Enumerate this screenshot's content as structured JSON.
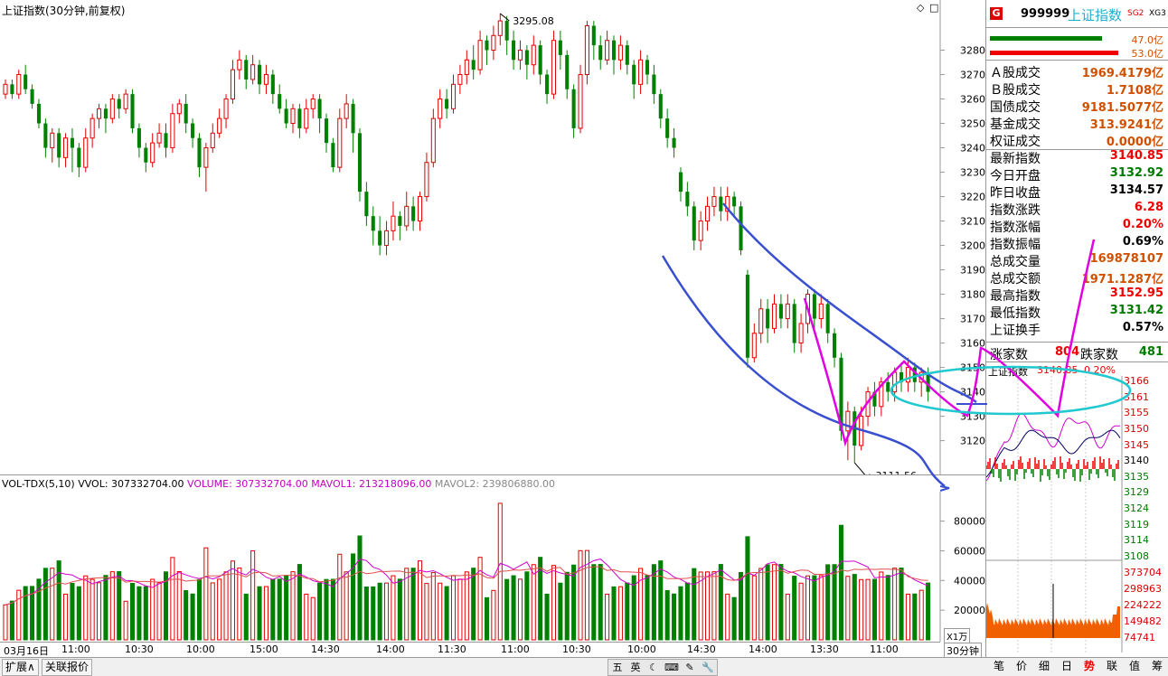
{
  "header": {
    "title": "上证指数(30分钟,前复权)",
    "icons": [
      "diamond-icon",
      "square-icon"
    ]
  },
  "chart_data": {
    "type": "candlestick",
    "title": "上证指数(30分钟,前复权)",
    "price_axis": {
      "ticks": [
        "3280",
        "3270",
        "3260",
        "3250",
        "3240",
        "3230",
        "3220",
        "3210",
        "3200",
        "3190",
        "3180",
        "3170",
        "3160",
        "3150",
        "3140",
        "3130",
        "3120"
      ]
    },
    "high_annotation": "3295.08",
    "low_annotation": "3111.56",
    "time_axis": [
      "03月16日",
      "11:00",
      "10:30",
      "10:00",
      "15:00",
      "14:30",
      "14:00",
      "11:30",
      "11:00",
      "10:30",
      "10:00",
      "14:30",
      "14:00",
      "13:30",
      "11:00"
    ],
    "candles": [
      {
        "o": 3262,
        "c": 3266,
        "h": 3268,
        "l": 3260
      },
      {
        "o": 3266,
        "c": 3262,
        "h": 3268,
        "l": 3260
      },
      {
        "o": 3262,
        "c": 3270,
        "h": 3272,
        "l": 3260
      },
      {
        "o": 3270,
        "c": 3264,
        "h": 3274,
        "l": 3262
      },
      {
        "o": 3264,
        "c": 3258,
        "h": 3266,
        "l": 3256
      },
      {
        "o": 3258,
        "c": 3250,
        "h": 3260,
        "l": 3248
      },
      {
        "o": 3250,
        "c": 3240,
        "h": 3252,
        "l": 3236
      },
      {
        "o": 3240,
        "c": 3246,
        "h": 3248,
        "l": 3234
      },
      {
        "o": 3246,
        "c": 3236,
        "h": 3248,
        "l": 3232
      },
      {
        "o": 3236,
        "c": 3244,
        "h": 3246,
        "l": 3232
      },
      {
        "o": 3244,
        "c": 3240,
        "h": 3248,
        "l": 3230
      },
      {
        "o": 3240,
        "c": 3232,
        "h": 3242,
        "l": 3228
      },
      {
        "o": 3232,
        "c": 3244,
        "h": 3248,
        "l": 3230
      },
      {
        "o": 3244,
        "c": 3252,
        "h": 3254,
        "l": 3240
      },
      {
        "o": 3252,
        "c": 3256,
        "h": 3258,
        "l": 3248
      },
      {
        "o": 3256,
        "c": 3252,
        "h": 3258,
        "l": 3246
      },
      {
        "o": 3252,
        "c": 3260,
        "h": 3262,
        "l": 3250
      },
      {
        "o": 3260,
        "c": 3256,
        "h": 3262,
        "l": 3252
      },
      {
        "o": 3256,
        "c": 3262,
        "h": 3264,
        "l": 3254
      },
      {
        "o": 3262,
        "c": 3248,
        "h": 3264,
        "l": 3246
      },
      {
        "o": 3248,
        "c": 3240,
        "h": 3250,
        "l": 3236
      },
      {
        "o": 3240,
        "c": 3234,
        "h": 3242,
        "l": 3230
      },
      {
        "o": 3234,
        "c": 3242,
        "h": 3246,
        "l": 3232
      },
      {
        "o": 3242,
        "c": 3246,
        "h": 3250,
        "l": 3240
      },
      {
        "o": 3246,
        "c": 3240,
        "h": 3250,
        "l": 3236
      },
      {
        "o": 3240,
        "c": 3254,
        "h": 3258,
        "l": 3238
      },
      {
        "o": 3254,
        "c": 3258,
        "h": 3260,
        "l": 3250
      },
      {
        "o": 3258,
        "c": 3250,
        "h": 3262,
        "l": 3246
      },
      {
        "o": 3250,
        "c": 3244,
        "h": 3252,
        "l": 3240
      },
      {
        "o": 3244,
        "c": 3232,
        "h": 3246,
        "l": 3228
      },
      {
        "o": 3232,
        "c": 3240,
        "h": 3242,
        "l": 3222
      },
      {
        "o": 3240,
        "c": 3246,
        "h": 3250,
        "l": 3238
      },
      {
        "o": 3246,
        "c": 3252,
        "h": 3256,
        "l": 3244
      },
      {
        "o": 3252,
        "c": 3260,
        "h": 3262,
        "l": 3248
      },
      {
        "o": 3260,
        "c": 3272,
        "h": 3276,
        "l": 3258
      },
      {
        "o": 3272,
        "c": 3276,
        "h": 3280,
        "l": 3268
      },
      {
        "o": 3276,
        "c": 3268,
        "h": 3278,
        "l": 3264
      },
      {
        "o": 3268,
        "c": 3274,
        "h": 3278,
        "l": 3266
      },
      {
        "o": 3274,
        "c": 3266,
        "h": 3276,
        "l": 3262
      },
      {
        "o": 3266,
        "c": 3270,
        "h": 3274,
        "l": 3262
      },
      {
        "o": 3270,
        "c": 3262,
        "h": 3272,
        "l": 3258
      },
      {
        "o": 3262,
        "c": 3256,
        "h": 3266,
        "l": 3254
      },
      {
        "o": 3256,
        "c": 3250,
        "h": 3260,
        "l": 3248
      },
      {
        "o": 3250,
        "c": 3256,
        "h": 3258,
        "l": 3246
      },
      {
        "o": 3256,
        "c": 3248,
        "h": 3258,
        "l": 3244
      },
      {
        "o": 3248,
        "c": 3256,
        "h": 3260,
        "l": 3246
      },
      {
        "o": 3256,
        "c": 3260,
        "h": 3262,
        "l": 3252
      },
      {
        "o": 3260,
        "c": 3252,
        "h": 3262,
        "l": 3246
      },
      {
        "o": 3252,
        "c": 3242,
        "h": 3254,
        "l": 3238
      },
      {
        "o": 3242,
        "c": 3232,
        "h": 3244,
        "l": 3230
      },
      {
        "o": 3232,
        "c": 3252,
        "h": 3256,
        "l": 3230
      },
      {
        "o": 3252,
        "c": 3258,
        "h": 3262,
        "l": 3248
      },
      {
        "o": 3258,
        "c": 3246,
        "h": 3260,
        "l": 3238
      },
      {
        "o": 3246,
        "c": 3222,
        "h": 3248,
        "l": 3218
      },
      {
        "o": 3222,
        "c": 3212,
        "h": 3226,
        "l": 3208
      },
      {
        "o": 3212,
        "c": 3206,
        "h": 3216,
        "l": 3200
      },
      {
        "o": 3206,
        "c": 3200,
        "h": 3212,
        "l": 3196
      },
      {
        "o": 3200,
        "c": 3206,
        "h": 3210,
        "l": 3196
      },
      {
        "o": 3206,
        "c": 3212,
        "h": 3218,
        "l": 3202
      },
      {
        "o": 3212,
        "c": 3208,
        "h": 3214,
        "l": 3202
      },
      {
        "o": 3208,
        "c": 3216,
        "h": 3222,
        "l": 3206
      },
      {
        "o": 3216,
        "c": 3210,
        "h": 3220,
        "l": 3206
      },
      {
        "o": 3210,
        "c": 3220,
        "h": 3222,
        "l": 3206
      },
      {
        "o": 3220,
        "c": 3234,
        "h": 3238,
        "l": 3218
      },
      {
        "o": 3234,
        "c": 3252,
        "h": 3256,
        "l": 3232
      },
      {
        "o": 3252,
        "c": 3260,
        "h": 3264,
        "l": 3248
      },
      {
        "o": 3260,
        "c": 3256,
        "h": 3264,
        "l": 3252
      },
      {
        "o": 3256,
        "c": 3266,
        "h": 3270,
        "l": 3254
      },
      {
        "o": 3266,
        "c": 3270,
        "h": 3274,
        "l": 3262
      },
      {
        "o": 3270,
        "c": 3276,
        "h": 3280,
        "l": 3266
      },
      {
        "o": 3276,
        "c": 3272,
        "h": 3282,
        "l": 3268
      },
      {
        "o": 3272,
        "c": 3284,
        "h": 3288,
        "l": 3270
      },
      {
        "o": 3284,
        "c": 3280,
        "h": 3286,
        "l": 3274
      },
      {
        "o": 3280,
        "c": 3286,
        "h": 3290,
        "l": 3276
      },
      {
        "o": 3286,
        "c": 3292,
        "h": 3295,
        "l": 3282
      },
      {
        "o": 3292,
        "c": 3284,
        "h": 3294,
        "l": 3278
      },
      {
        "o": 3284,
        "c": 3276,
        "h": 3288,
        "l": 3272
      },
      {
        "o": 3276,
        "c": 3280,
        "h": 3284,
        "l": 3272
      },
      {
        "o": 3280,
        "c": 3274,
        "h": 3282,
        "l": 3268
      },
      {
        "o": 3274,
        "c": 3282,
        "h": 3286,
        "l": 3270
      },
      {
        "o": 3282,
        "c": 3270,
        "h": 3284,
        "l": 3266
      },
      {
        "o": 3270,
        "c": 3262,
        "h": 3272,
        "l": 3258
      },
      {
        "o": 3262,
        "c": 3284,
        "h": 3288,
        "l": 3260
      },
      {
        "o": 3284,
        "c": 3278,
        "h": 3288,
        "l": 3272
      },
      {
        "o": 3278,
        "c": 3264,
        "h": 3280,
        "l": 3260
      },
      {
        "o": 3264,
        "c": 3248,
        "h": 3266,
        "l": 3244
      },
      {
        "o": 3248,
        "c": 3270,
        "h": 3274,
        "l": 3246
      },
      {
        "o": 3270,
        "c": 3290,
        "h": 3292,
        "l": 3266
      },
      {
        "o": 3290,
        "c": 3282,
        "h": 3292,
        "l": 3276
      },
      {
        "o": 3282,
        "c": 3276,
        "h": 3286,
        "l": 3272
      },
      {
        "o": 3276,
        "c": 3284,
        "h": 3288,
        "l": 3274
      },
      {
        "o": 3284,
        "c": 3276,
        "h": 3286,
        "l": 3270
      },
      {
        "o": 3276,
        "c": 3282,
        "h": 3286,
        "l": 3272
      },
      {
        "o": 3282,
        "c": 3274,
        "h": 3284,
        "l": 3270
      },
      {
        "o": 3274,
        "c": 3266,
        "h": 3276,
        "l": 3260
      },
      {
        "o": 3266,
        "c": 3276,
        "h": 3280,
        "l": 3262
      },
      {
        "o": 3276,
        "c": 3270,
        "h": 3278,
        "l": 3266
      },
      {
        "o": 3270,
        "c": 3262,
        "h": 3274,
        "l": 3258
      },
      {
        "o": 3262,
        "c": 3252,
        "h": 3264,
        "l": 3248
      },
      {
        "o": 3252,
        "c": 3244,
        "h": 3256,
        "l": 3240
      },
      {
        "o": 3244,
        "c": 3240,
        "h": 3248,
        "l": 3236
      },
      {
        "o": 3230,
        "c": 3222,
        "h": 3232,
        "l": 3218
      },
      {
        "o": 3222,
        "c": 3216,
        "h": 3226,
        "l": 3212
      },
      {
        "o": 3216,
        "c": 3202,
        "h": 3218,
        "l": 3198
      },
      {
        "o": 3202,
        "c": 3210,
        "h": 3214,
        "l": 3198
      },
      {
        "o": 3210,
        "c": 3216,
        "h": 3220,
        "l": 3206
      },
      {
        "o": 3216,
        "c": 3220,
        "h": 3224,
        "l": 3212
      },
      {
        "o": 3220,
        "c": 3214,
        "h": 3224,
        "l": 3210
      },
      {
        "o": 3214,
        "c": 3220,
        "h": 3224,
        "l": 3210
      },
      {
        "o": 3220,
        "c": 3216,
        "h": 3222,
        "l": 3212
      },
      {
        "o": 3216,
        "c": 3198,
        "h": 3218,
        "l": 3196
      },
      {
        "o": 3188,
        "c": 3154,
        "h": 3190,
        "l": 3150
      },
      {
        "o": 3154,
        "c": 3164,
        "h": 3168,
        "l": 3152
      },
      {
        "o": 3164,
        "c": 3174,
        "h": 3178,
        "l": 3160
      },
      {
        "o": 3174,
        "c": 3166,
        "h": 3178,
        "l": 3160
      },
      {
        "o": 3166,
        "c": 3176,
        "h": 3180,
        "l": 3164
      },
      {
        "o": 3176,
        "c": 3170,
        "h": 3180,
        "l": 3166
      },
      {
        "o": 3170,
        "c": 3176,
        "h": 3180,
        "l": 3166
      },
      {
        "o": 3176,
        "c": 3160,
        "h": 3178,
        "l": 3156
      },
      {
        "o": 3160,
        "c": 3168,
        "h": 3172,
        "l": 3156
      },
      {
        "o": 3168,
        "c": 3180,
        "h": 3182,
        "l": 3164
      },
      {
        "o": 3180,
        "c": 3170,
        "h": 3182,
        "l": 3166
      },
      {
        "o": 3170,
        "c": 3176,
        "h": 3180,
        "l": 3166
      },
      {
        "o": 3176,
        "c": 3164,
        "h": 3178,
        "l": 3160
      },
      {
        "o": 3164,
        "c": 3154,
        "h": 3166,
        "l": 3150
      },
      {
        "o": 3154,
        "c": 3124,
        "h": 3156,
        "l": 3120
      },
      {
        "o": 3124,
        "c": 3132,
        "h": 3136,
        "l": 3112
      },
      {
        "o": 3132,
        "c": 3118,
        "h": 3134,
        "l": 3111
      },
      {
        "o": 3118,
        "c": 3130,
        "h": 3134,
        "l": 3116
      },
      {
        "o": 3130,
        "c": 3140,
        "h": 3142,
        "l": 3126
      },
      {
        "o": 3140,
        "c": 3134,
        "h": 3144,
        "l": 3130
      },
      {
        "o": 3134,
        "c": 3144,
        "h": 3146,
        "l": 3130
      },
      {
        "o": 3144,
        "c": 3140,
        "h": 3148,
        "l": 3136
      },
      {
        "o": 3140,
        "c": 3148,
        "h": 3150,
        "l": 3136
      },
      {
        "o": 3148,
        "c": 3144,
        "h": 3152,
        "l": 3140
      },
      {
        "o": 3144,
        "c": 3150,
        "h": 3154,
        "l": 3140
      },
      {
        "o": 3150,
        "c": 3144,
        "h": 3152,
        "l": 3140
      },
      {
        "o": 3144,
        "c": 3148,
        "h": 3150,
        "l": 3138
      },
      {
        "o": 3148,
        "c": 3140,
        "h": 3150,
        "l": 3136
      }
    ],
    "volume_panel": {
      "label": "VOL-TDX(5,10)",
      "vol_label": "VVOL:",
      "vol_value": "307332704.00",
      "volume_label": "VOLUME:",
      "volume_value": "307332704.00",
      "mavol1_label": "MAVOL1:",
      "mavol1_value": "213218096.00",
      "mavol2_label": "MAVOL2:",
      "mavol2_value": "239806880.00",
      "axis_ticks": [
        "80000",
        "60000",
        "40000",
        "20000"
      ],
      "unit": "X1万"
    },
    "colors": {
      "up": "#e00000",
      "down": "#008000",
      "ma1": "#d000d0",
      "ma2": "#e05050",
      "trend": "#3a4fd0",
      "annotation": "#e000e0",
      "ellipse": "#20c8d0"
    }
  },
  "right_panel": {
    "code": "999999",
    "name": "上证指数",
    "badge_g": "G",
    "sg2": "SG2",
    "xg3": "XG3",
    "bar1_value": "47.0亿",
    "bar2_value": "53.0亿",
    "rows": [
      {
        "label": "Ａ股成交",
        "value": "1969.4179亿",
        "color": "orange"
      },
      {
        "label": "Ｂ股成交",
        "value": "1.7108亿",
        "color": "orange"
      },
      {
        "label": "国债成交",
        "value": "9181.5077亿",
        "color": "orange"
      },
      {
        "label": "基金成交",
        "value": "313.9241亿",
        "color": "orange"
      },
      {
        "label": "权证成交",
        "value": "0.0000亿",
        "color": "orange"
      },
      {
        "label": "最新指数",
        "value": "3140.85",
        "color": "red"
      },
      {
        "label": "今日开盘",
        "value": "3132.92",
        "color": "green"
      },
      {
        "label": "昨日收盘",
        "value": "3134.57",
        "color": "black"
      },
      {
        "label": "指数涨跌",
        "value": "6.28",
        "color": "red"
      },
      {
        "label": "指数涨幅",
        "value": "0.20%",
        "color": "red"
      },
      {
        "label": "指数振幅",
        "value": "0.69%",
        "color": "black"
      },
      {
        "label": "总成交量",
        "value": "169878107",
        "color": "orange"
      },
      {
        "label": "总成交额",
        "value": "1971.1287亿",
        "color": "orange"
      },
      {
        "label": "最高指数",
        "value": "3152.95",
        "color": "red"
      },
      {
        "label": "最低指数",
        "value": "3131.42",
        "color": "green"
      },
      {
        "label": "上证换手",
        "value": "0.57%",
        "color": "black"
      }
    ],
    "up_count_label": "涨家数",
    "up_count": "804",
    "down_count_label": "跌家数",
    "down_count": "481",
    "mini_title": "上证指数",
    "mini_value": "3140.85",
    "mini_pct": "0.20%",
    "mini_ticks": [
      "3166",
      "3161",
      "3155",
      "3150",
      "3145",
      "3140",
      "3135",
      "3129",
      "3124",
      "3119",
      "3114",
      "3108"
    ],
    "mini_vol_ticks": [
      "373704",
      "298963",
      "224222",
      "149482",
      "74741"
    ],
    "tabs": [
      "笔",
      "价",
      "细",
      "日",
      "势",
      "联",
      "值",
      "筹"
    ]
  },
  "bottom": {
    "expand_label": "扩展∧",
    "linked_label": "关联报价",
    "period_label": "30分钟",
    "tool_icons": [
      "五",
      "英",
      "☾",
      "⌨",
      "✎",
      "🔧"
    ]
  }
}
